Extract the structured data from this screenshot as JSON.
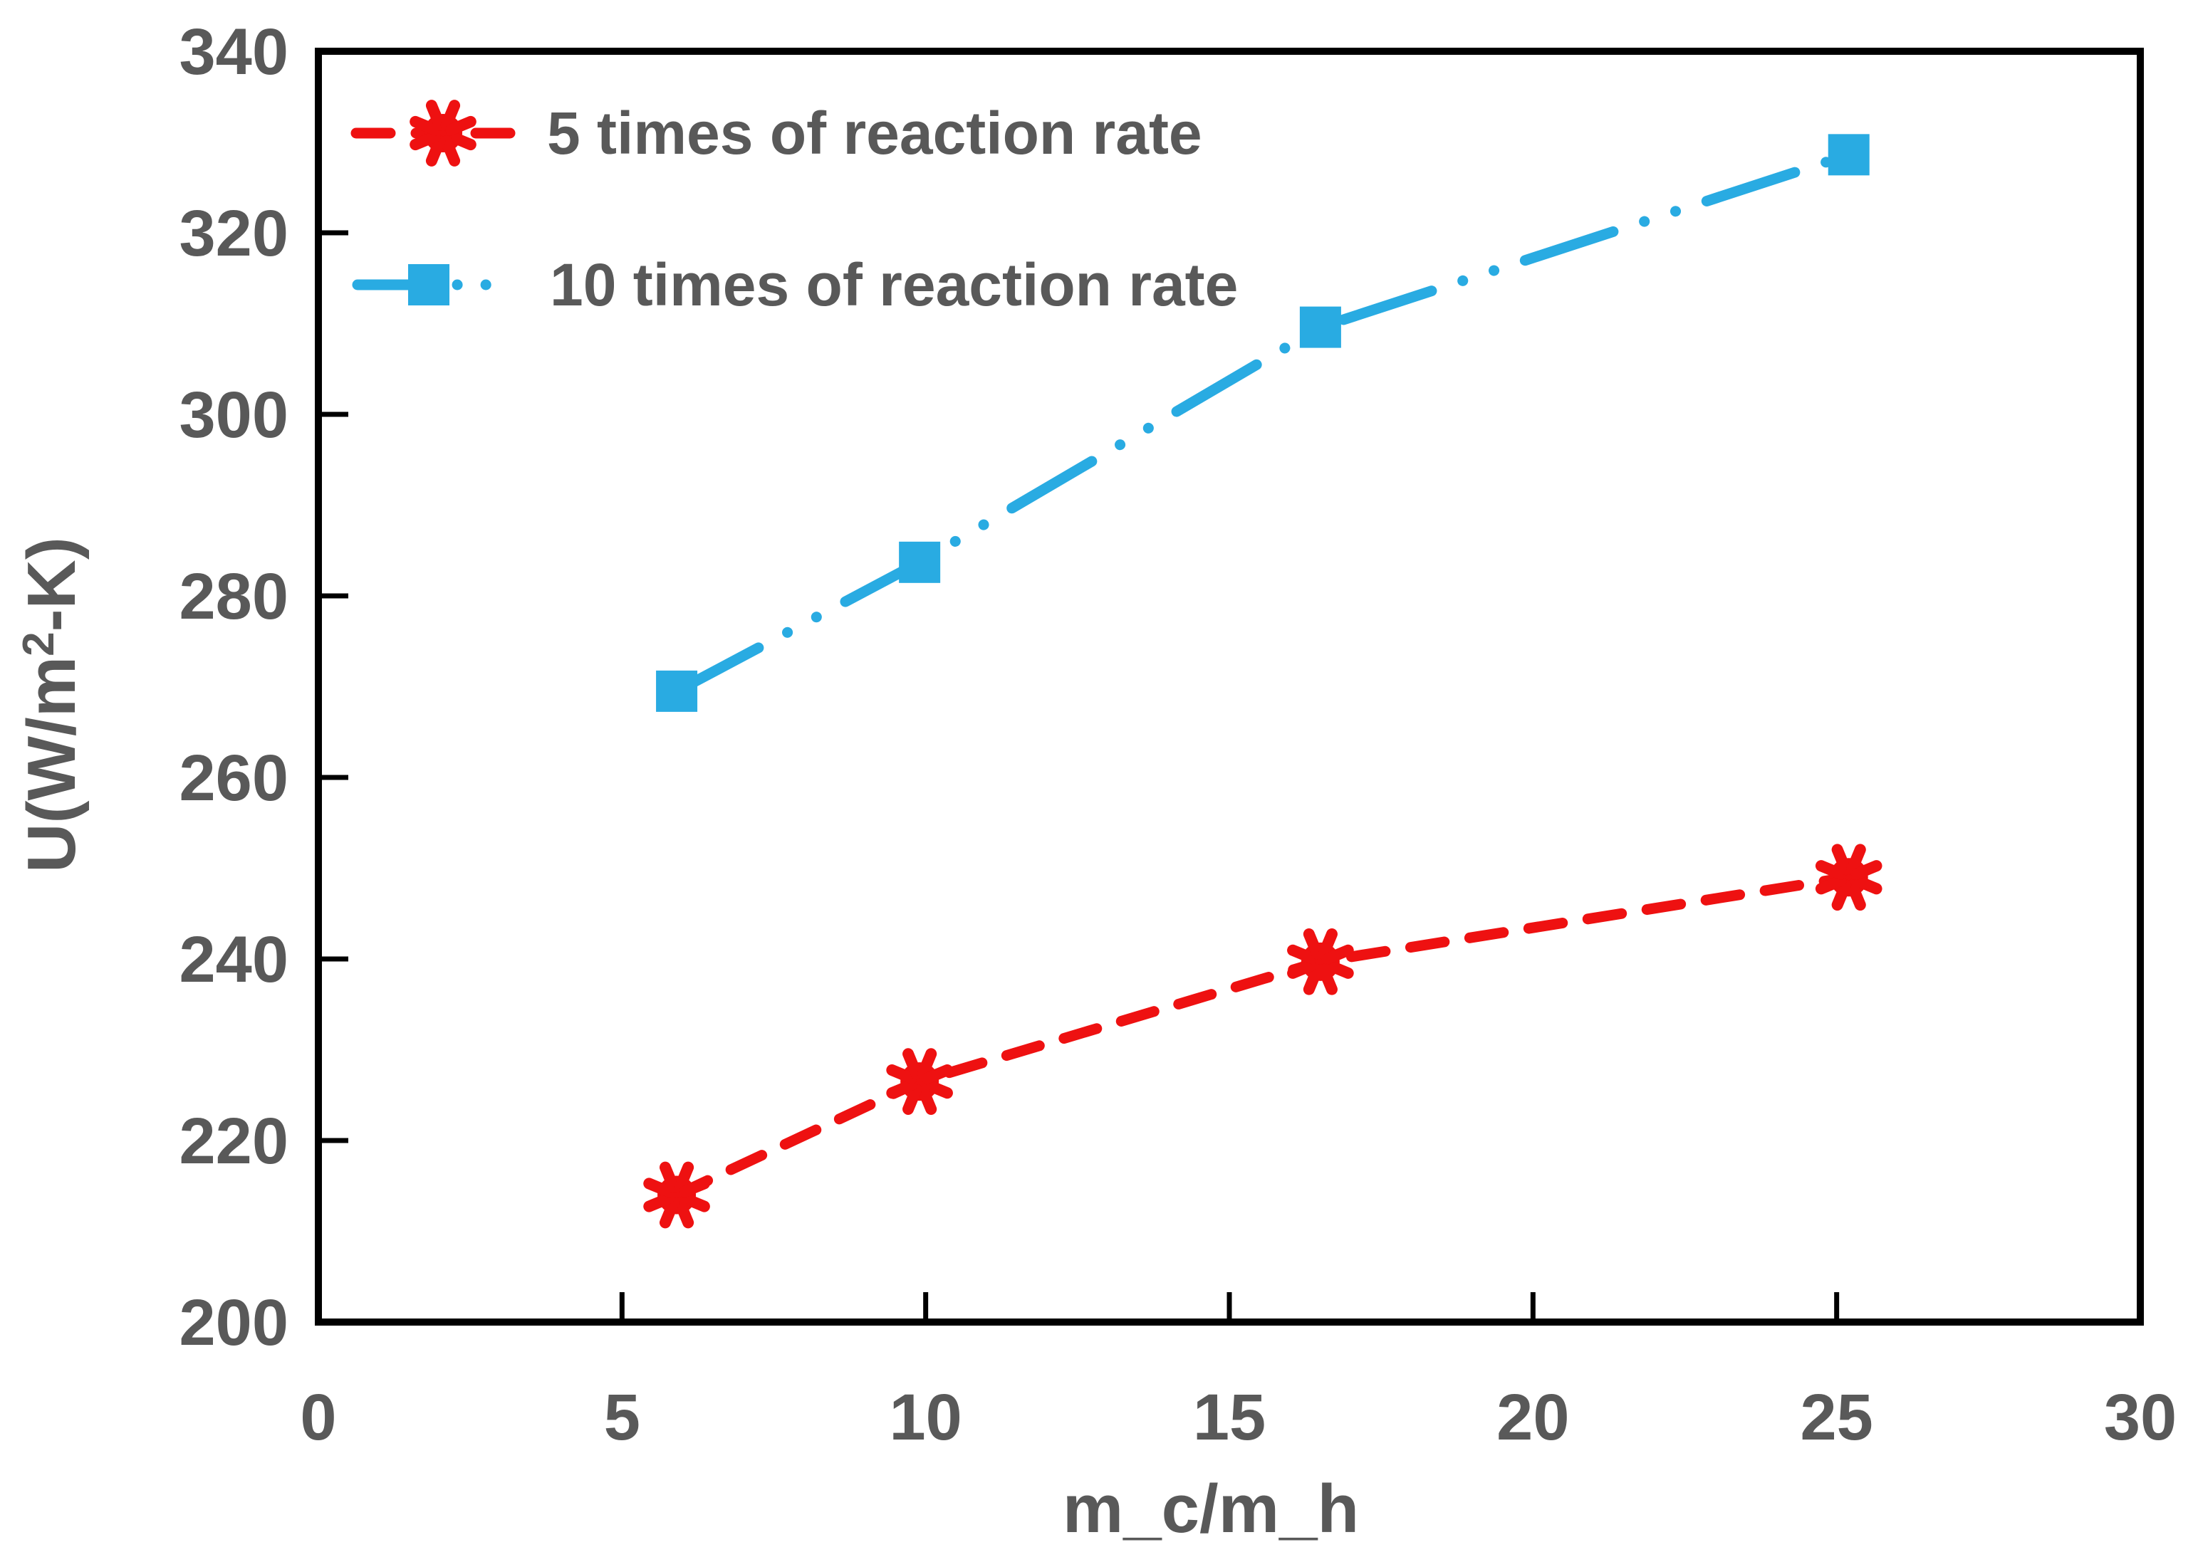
{
  "chart_data": {
    "type": "line",
    "title": "",
    "xlabel": "m_c/m_h",
    "ylabel": "U(W/m2-K)",
    "ylabel_prefix": "U(W/m",
    "ylabel_sup": "2",
    "ylabel_suffix": "-K)",
    "xlim": [
      0,
      30
    ],
    "ylim": [
      200,
      340
    ],
    "x_ticks": [
      0,
      5,
      10,
      15,
      20,
      25,
      30
    ],
    "y_ticks": [
      200,
      220,
      240,
      260,
      280,
      300,
      320,
      340
    ],
    "grid": false,
    "legend_position": "top-left-inside",
    "background_color": "#ffffff",
    "axis_color": "#000000",
    "text_color": "#595959",
    "series": [
      {
        "name": "5 times of reaction rate",
        "color": "#ee1111",
        "line_style": "dashed",
        "marker": "star8",
        "x": [
          5.9,
          9.9,
          16.5,
          25.2
        ],
        "y": [
          214,
          226.5,
          239.7,
          249
        ]
      },
      {
        "name": "10 times of reaction rate",
        "color": "#29abe2",
        "line_style": "long-dash-dot-dot",
        "marker": "square",
        "x": [
          5.9,
          9.9,
          16.5,
          25.2
        ],
        "y": [
          269.5,
          283.7,
          309.6,
          328.6
        ]
      }
    ]
  }
}
